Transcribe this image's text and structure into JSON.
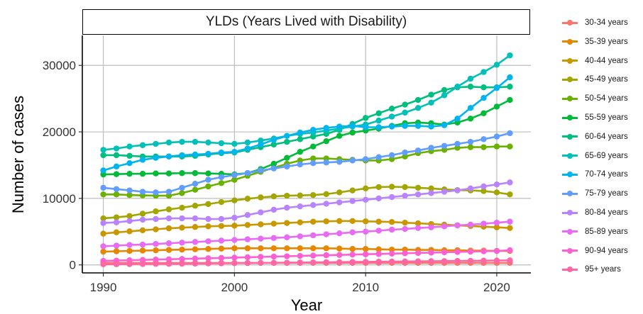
{
  "chart_data": {
    "type": "line",
    "title": "YLDs (Years Lived with Disability)",
    "xlabel": "Year",
    "ylabel": "Number of cases",
    "xlim": [
      1988.4,
      2022.6
    ],
    "ylim": [
      -1200,
      34500
    ],
    "x_ticks": [
      "1990",
      "2000",
      "2010",
      "2020"
    ],
    "x_tick_values": [
      1990,
      2000,
      2010,
      2020
    ],
    "y_ticks": [
      "0",
      "10000",
      "20000",
      "30000"
    ],
    "y_tick_values": [
      0,
      10000,
      20000,
      30000
    ],
    "grid": true,
    "legend_position": "right",
    "x": [
      1990,
      1991,
      1992,
      1993,
      1994,
      1995,
      1996,
      1997,
      1998,
      1999,
      2000,
      2001,
      2002,
      2003,
      2004,
      2005,
      2006,
      2007,
      2008,
      2009,
      2010,
      2011,
      2012,
      2013,
      2014,
      2015,
      2016,
      2017,
      2018,
      2019,
      2020,
      2021
    ],
    "series": [
      {
        "name": "30-34 years",
        "color": "#F8766D",
        "values": [
          300,
          300,
          300,
          300,
          300,
          300,
          300,
          300,
          300,
          300,
          300,
          300,
          300,
          300,
          300,
          300,
          300,
          300,
          300,
          300,
          300,
          300,
          300,
          300,
          300,
          300,
          300,
          300,
          300,
          300,
          300,
          300
        ]
      },
      {
        "name": "35-39 years",
        "color": "#E58700",
        "values": [
          2000,
          2050,
          2100,
          2150,
          2200,
          2250,
          2300,
          2350,
          2400,
          2450,
          2500,
          2500,
          2500,
          2500,
          2500,
          2500,
          2500,
          2500,
          2450,
          2400,
          2400,
          2350,
          2300,
          2300,
          2250,
          2250,
          2200,
          2200,
          2150,
          2150,
          2100,
          2100
        ]
      },
      {
        "name": "40-44 years",
        "color": "#C99800",
        "values": [
          4700,
          4900,
          5050,
          5200,
          5350,
          5500,
          5600,
          5700,
          5800,
          5850,
          5900,
          6000,
          6100,
          6200,
          6300,
          6400,
          6500,
          6550,
          6600,
          6600,
          6550,
          6500,
          6450,
          6350,
          6250,
          6150,
          6050,
          5950,
          5850,
          5750,
          5650,
          5550
        ]
      },
      {
        "name": "45-49 years",
        "color": "#A3A500",
        "values": [
          7000,
          7150,
          7350,
          7700,
          8050,
          8350,
          8600,
          8900,
          9150,
          9450,
          9700,
          9950,
          10150,
          10300,
          10400,
          10450,
          10500,
          10650,
          10900,
          11200,
          11500,
          11700,
          11750,
          11700,
          11600,
          11500,
          11350,
          11250,
          11200,
          11100,
          10900,
          10600
        ]
      },
      {
        "name": "50-54 years",
        "color": "#6BB100",
        "values": [
          10600,
          10600,
          10500,
          10450,
          10400,
          10400,
          10800,
          11300,
          11800,
          12300,
          12800,
          13400,
          14000,
          14600,
          15200,
          15700,
          16000,
          16000,
          15900,
          15800,
          15700,
          15700,
          15900,
          16300,
          16800,
          17100,
          17300,
          17600,
          17700,
          17700,
          17800,
          17800
        ]
      },
      {
        "name": "55-59 years",
        "color": "#00BA38",
        "values": [
          13600,
          13650,
          13700,
          13700,
          13750,
          13750,
          13800,
          13800,
          13750,
          13700,
          13600,
          13800,
          14400,
          15200,
          16100,
          17000,
          17800,
          18600,
          19400,
          19900,
          20200,
          20500,
          20900,
          21300,
          21400,
          21300,
          21100,
          21400,
          22000,
          22800,
          23800,
          24800
        ]
      },
      {
        "name": "60-64 years",
        "color": "#00BF7D",
        "values": [
          16500,
          16500,
          16400,
          16300,
          16300,
          16300,
          16300,
          16400,
          16600,
          16800,
          16900,
          17300,
          17700,
          18100,
          18500,
          18900,
          19300,
          19700,
          20300,
          21200,
          22100,
          22800,
          23500,
          24100,
          24800,
          25600,
          26300,
          26700,
          26800,
          26700,
          26700,
          26800
        ]
      },
      {
        "name": "65-69 years",
        "color": "#00C0B8",
        "values": [
          17300,
          17500,
          17800,
          18000,
          18200,
          18400,
          18500,
          18500,
          18400,
          18300,
          18200,
          18400,
          18700,
          19000,
          19400,
          19700,
          19900,
          20200,
          20500,
          20800,
          21100,
          21700,
          22300,
          22900,
          23600,
          24400,
          25500,
          26800,
          28000,
          29000,
          30100,
          31500
        ]
      },
      {
        "name": "70-74 years",
        "color": "#00B4F0",
        "values": [
          14200,
          14800,
          15300,
          15800,
          16100,
          16300,
          16500,
          16600,
          16700,
          16900,
          17000,
          17500,
          18100,
          18800,
          19400,
          19900,
          20300,
          20600,
          20800,
          20900,
          20700,
          20700,
          20800,
          20900,
          20900,
          20800,
          21000,
          22000,
          23600,
          25100,
          26600,
          28200
        ]
      },
      {
        "name": "75-79 years",
        "color": "#619CFF",
        "values": [
          11600,
          11400,
          11200,
          11000,
          10900,
          11000,
          11600,
          12200,
          12800,
          13200,
          13500,
          13800,
          14200,
          14500,
          14800,
          15100,
          15300,
          15400,
          15500,
          15700,
          15900,
          16200,
          16500,
          16900,
          17200,
          17600,
          17900,
          18200,
          18500,
          18900,
          19300,
          19800
        ]
      },
      {
        "name": "80-84 years",
        "color": "#B983FF",
        "values": [
          6300,
          6400,
          6600,
          6800,
          6900,
          7000,
          7000,
          7000,
          6900,
          6900,
          7100,
          7500,
          7900,
          8300,
          8600,
          8800,
          9000,
          9200,
          9400,
          9600,
          9800,
          10000,
          10200,
          10400,
          10600,
          10800,
          11000,
          11200,
          11500,
          11800,
          12100,
          12400
        ]
      },
      {
        "name": "85-89 years",
        "color": "#E76BF3",
        "values": [
          2800,
          2900,
          3000,
          3050,
          3150,
          3250,
          3350,
          3450,
          3550,
          3650,
          3750,
          3850,
          3950,
          4050,
          4150,
          4300,
          4450,
          4600,
          4750,
          4900,
          5000,
          5150,
          5300,
          5400,
          5550,
          5650,
          5800,
          5950,
          6050,
          6200,
          6350,
          6500
        ]
      },
      {
        "name": "90-94 years",
        "color": "#FD61D1",
        "values": [
          600,
          650,
          700,
          750,
          800,
          850,
          900,
          950,
          1000,
          1050,
          1100,
          1150,
          1200,
          1250,
          1300,
          1350,
          1400,
          1450,
          1500,
          1550,
          1600,
          1650,
          1700,
          1750,
          1800,
          1850,
          1900,
          1950,
          2000,
          2050,
          2100,
          2200
        ]
      },
      {
        "name": "95+ years",
        "color": "#FF67A4",
        "values": [
          100,
          100,
          120,
          130,
          150,
          160,
          180,
          200,
          220,
          240,
          260,
          280,
          300,
          320,
          340,
          360,
          380,
          400,
          420,
          440,
          460,
          480,
          500,
          520,
          540,
          560,
          580,
          600,
          620,
          640,
          660,
          680
        ]
      }
    ]
  }
}
